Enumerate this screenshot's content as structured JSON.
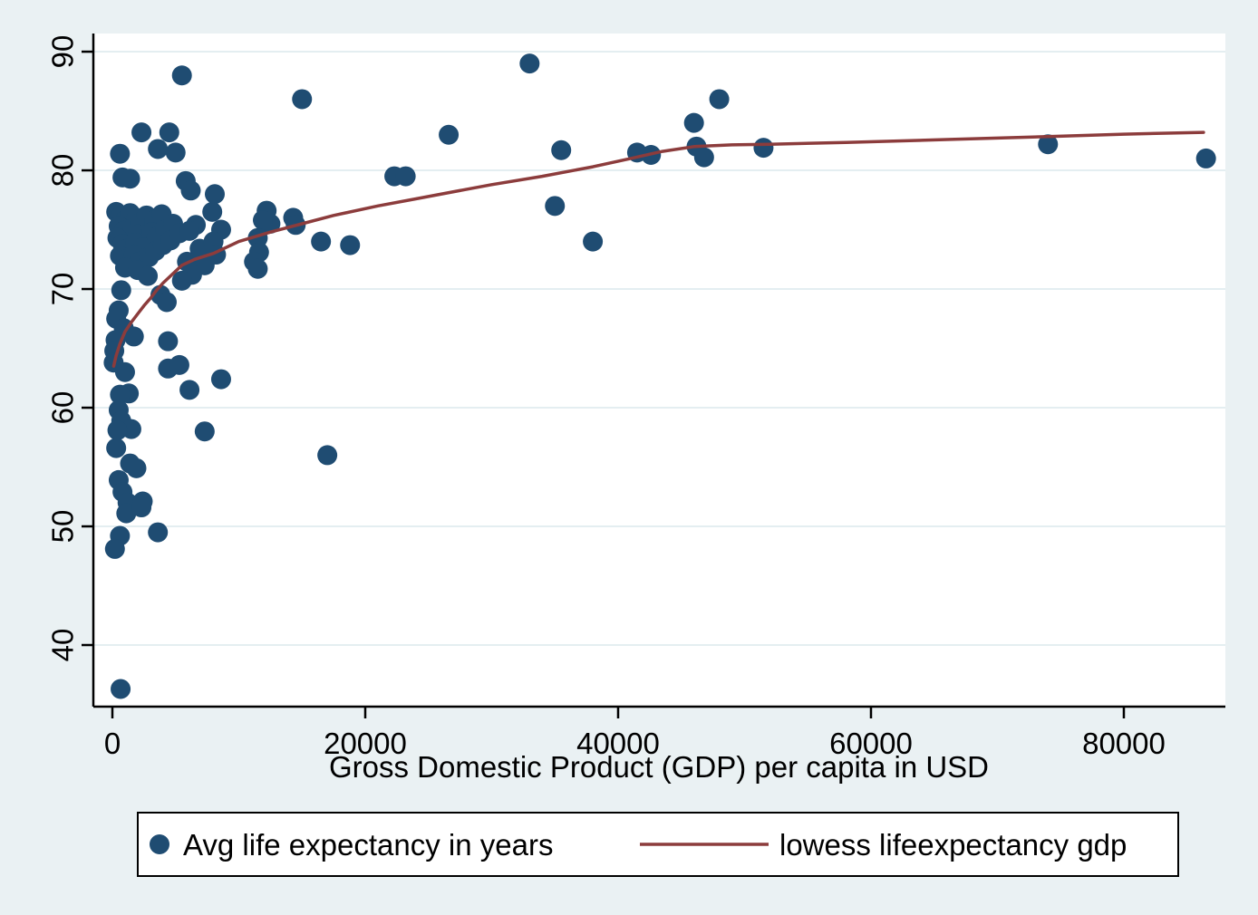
{
  "figure": {
    "background_color": "#eaf1f3",
    "plot_background_color": "#ffffff",
    "gridline_color": "#e4eef1",
    "axis_color": "#000000"
  },
  "legend": {
    "marker_label": "Avg life expectancy in years",
    "line_label": "lowess lifeexpectancy gdp",
    "border_color": "#000000",
    "background_color": "#ffffff"
  },
  "chart_data": {
    "type": "scatter",
    "title": "",
    "xlabel": "Gross Domestic Product (GDP) per capita in USD",
    "ylabel": "",
    "x_axis": {
      "min": -1505,
      "max": 88030,
      "ticks": [
        0,
        20000,
        40000,
        60000,
        80000
      ]
    },
    "y_axis": {
      "min": 34.81,
      "max": 91.53,
      "ticks": [
        40,
        50,
        60,
        70,
        80,
        90
      ]
    },
    "grid": true,
    "legend_position": "bottom",
    "series": [
      {
        "name": "Avg life expectancy in years",
        "kind": "points",
        "color": "#1f4c72",
        "marker_radius": 11,
        "points": [
          [
            33000,
            89
          ],
          [
            5500,
            88
          ],
          [
            15000,
            86
          ],
          [
            48000,
            86
          ],
          [
            46000,
            84
          ],
          [
            26600,
            83
          ],
          [
            2300,
            83.2
          ],
          [
            4500,
            83.2
          ],
          [
            600,
            81.4
          ],
          [
            3600,
            81.8
          ],
          [
            5000,
            81.5
          ],
          [
            74000,
            82.2
          ],
          [
            86500,
            81
          ],
          [
            51500,
            81.9
          ],
          [
            46200,
            82
          ],
          [
            46800,
            81.1
          ],
          [
            41500,
            81.5
          ],
          [
            42600,
            81.3
          ],
          [
            35500,
            81.7
          ],
          [
            22300,
            79.5
          ],
          [
            23200,
            79.5
          ],
          [
            35000,
            77
          ],
          [
            38000,
            74
          ],
          [
            17000,
            56
          ],
          [
            16500,
            74
          ],
          [
            18800,
            73.7
          ],
          [
            12200,
            76.6
          ],
          [
            14300,
            76
          ],
          [
            14500,
            75.4
          ],
          [
            12500,
            75.5
          ],
          [
            11900,
            75.8
          ],
          [
            1400,
            79.3
          ],
          [
            800,
            79.4
          ],
          [
            5800,
            79.1
          ],
          [
            6200,
            78.3
          ],
          [
            8100,
            78
          ],
          [
            650,
            36.3
          ],
          [
            300,
            76.5
          ],
          [
            700,
            76.2
          ],
          [
            1000,
            75.8
          ],
          [
            1400,
            76.4
          ],
          [
            1900,
            76.0
          ],
          [
            500,
            75.3
          ],
          [
            900,
            74.9
          ],
          [
            1600,
            75.1
          ],
          [
            2200,
            75.6
          ],
          [
            2700,
            76.2
          ],
          [
            3300,
            75.8
          ],
          [
            3900,
            76.3
          ],
          [
            2000,
            74.6
          ],
          [
            2500,
            74.2
          ],
          [
            3100,
            74.8
          ],
          [
            400,
            74.3
          ],
          [
            800,
            73.8
          ],
          [
            1200,
            73.4
          ],
          [
            1800,
            73.9
          ],
          [
            2400,
            73.5
          ],
          [
            3500,
            74.4
          ],
          [
            4200,
            75.0
          ],
          [
            4800,
            75.5
          ],
          [
            600,
            72.8
          ],
          [
            1100,
            72.5
          ],
          [
            1700,
            72.9
          ],
          [
            2100,
            72.3
          ],
          [
            2900,
            72.7
          ],
          [
            3400,
            73.2
          ],
          [
            4000,
            73.7
          ],
          [
            4600,
            74.1
          ],
          [
            5300,
            74.7
          ],
          [
            1000,
            71.8
          ],
          [
            2000,
            71.6
          ],
          [
            7900,
            76.5
          ],
          [
            6600,
            75.4
          ],
          [
            8600,
            75.0
          ],
          [
            6100,
            74.9
          ],
          [
            6900,
            73.4
          ],
          [
            8000,
            74.0
          ],
          [
            8200,
            72.9
          ],
          [
            5900,
            72.3
          ],
          [
            7300,
            72.0
          ],
          [
            6300,
            71.2
          ],
          [
            11500,
            74.3
          ],
          [
            11600,
            73.1
          ],
          [
            11200,
            72.3
          ],
          [
            11500,
            71.7
          ],
          [
            700,
            69.9
          ],
          [
            500,
            68.2
          ],
          [
            300,
            67.5
          ],
          [
            900,
            66.7
          ],
          [
            250,
            65.7
          ],
          [
            1700,
            66.0
          ],
          [
            150,
            64.8
          ],
          [
            2800,
            71.1
          ],
          [
            3800,
            69.5
          ],
          [
            4300,
            68.9
          ],
          [
            5500,
            70.7
          ],
          [
            4400,
            65.6
          ],
          [
            100,
            63.8
          ],
          [
            1000,
            63.0
          ],
          [
            4400,
            63.3
          ],
          [
            5300,
            63.6
          ],
          [
            6100,
            61.5
          ],
          [
            8600,
            62.4
          ],
          [
            7300,
            58
          ],
          [
            1300,
            61.2
          ],
          [
            600,
            61.1
          ],
          [
            500,
            59.8
          ],
          [
            700,
            58.9
          ],
          [
            1500,
            58.2
          ],
          [
            400,
            58.1
          ],
          [
            300,
            56.6
          ],
          [
            1400,
            55.3
          ],
          [
            1900,
            54.9
          ],
          [
            500,
            53.9
          ],
          [
            800,
            52.9
          ],
          [
            1200,
            52.0
          ],
          [
            2400,
            52.1
          ],
          [
            1100,
            51.1
          ],
          [
            2300,
            51.6
          ],
          [
            600,
            49.2
          ],
          [
            200,
            48.1
          ],
          [
            3600,
            49.5
          ]
        ]
      },
      {
        "name": "lowess lifeexpectancy gdp",
        "kind": "line",
        "color": "#8c3c3c",
        "line_width": 3.5,
        "points": [
          [
            100,
            63.5
          ],
          [
            300,
            64.4
          ],
          [
            600,
            65.4
          ],
          [
            1000,
            66.4
          ],
          [
            1500,
            67.2
          ],
          [
            2000,
            67.9
          ],
          [
            2500,
            68.6
          ],
          [
            3000,
            69.2
          ],
          [
            3500,
            69.9
          ],
          [
            4000,
            70.5
          ],
          [
            4500,
            71.0
          ],
          [
            5000,
            71.5
          ],
          [
            5500,
            72.0
          ],
          [
            6500,
            72.5
          ],
          [
            8000,
            73.0
          ],
          [
            10000,
            74.0
          ],
          [
            12500,
            74.8
          ],
          [
            15000,
            75.5
          ],
          [
            17500,
            76.2
          ],
          [
            21000,
            77.0
          ],
          [
            24000,
            77.6
          ],
          [
            27000,
            78.2
          ],
          [
            30000,
            78.8
          ],
          [
            34000,
            79.5
          ],
          [
            38000,
            80.3
          ],
          [
            41000,
            81.0
          ],
          [
            43500,
            81.6
          ],
          [
            46000,
            82.0
          ],
          [
            49000,
            82.15
          ],
          [
            52000,
            82.2
          ],
          [
            58000,
            82.35
          ],
          [
            66000,
            82.6
          ],
          [
            74000,
            82.85
          ],
          [
            80000,
            83.05
          ],
          [
            86300,
            83.2
          ]
        ]
      }
    ]
  }
}
